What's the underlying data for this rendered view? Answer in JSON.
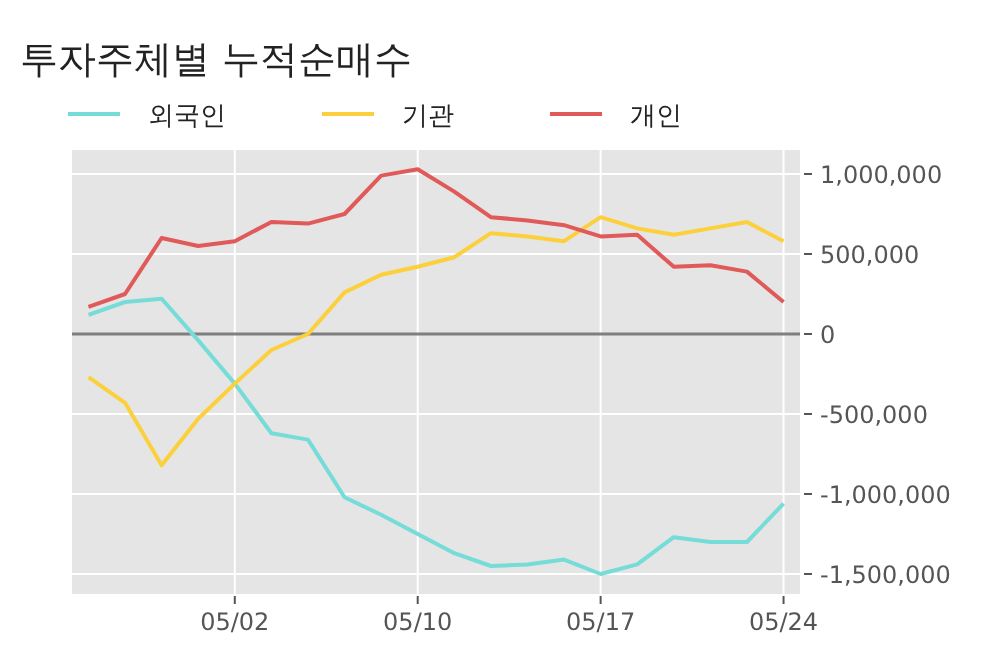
{
  "chart_data": {
    "type": "line",
    "title": "투자주체별 누적순매수",
    "categories": [
      null,
      null,
      null,
      null,
      "05/02",
      null,
      null,
      null,
      null,
      "05/10",
      null,
      null,
      null,
      null,
      "05/17",
      null,
      null,
      null,
      null,
      "05/24"
    ],
    "series": [
      {
        "name": "외국인",
        "color": "#76dcd8",
        "values": [
          120000,
          200000,
          220000,
          -40000,
          -310000,
          -620000,
          -660000,
          -1020000,
          -1130000,
          -1250000,
          -1370000,
          -1450000,
          -1440000,
          -1410000,
          -1500000,
          -1440000,
          -1270000,
          -1300000,
          -1300000,
          -1060000
        ]
      },
      {
        "name": "기관",
        "color": "#fcd03c",
        "values": [
          -270000,
          -430000,
          -820000,
          -530000,
          -310000,
          -100000,
          0,
          260000,
          370000,
          420000,
          480000,
          630000,
          610000,
          580000,
          730000,
          660000,
          620000,
          660000,
          700000,
          580000
        ]
      },
      {
        "name": "개인",
        "color": "#e05a5a",
        "values": [
          170000,
          250000,
          600000,
          550000,
          580000,
          700000,
          690000,
          750000,
          990000,
          1030000,
          890000,
          730000,
          710000,
          680000,
          610000,
          620000,
          420000,
          430000,
          390000,
          200000
        ]
      }
    ],
    "ylim": [
      -1625000,
      1150000
    ],
    "yticks": [
      {
        "value": 1000000,
        "label": "1,000,000"
      },
      {
        "value": 500000,
        "label": "500,000"
      },
      0,
      {
        "value": -500000,
        "label": "-500,000"
      },
      {
        "value": -1000000,
        "label": "-1,000,000"
      },
      {
        "value": -1500000,
        "label": "-1,500,000"
      }
    ],
    "ref_lines": [
      {
        "axis": "y",
        "value": 0,
        "color": "#7f7f7f"
      }
    ],
    "grid": true,
    "legend": "top left",
    "line_style": "solid",
    "marker": "none"
  }
}
